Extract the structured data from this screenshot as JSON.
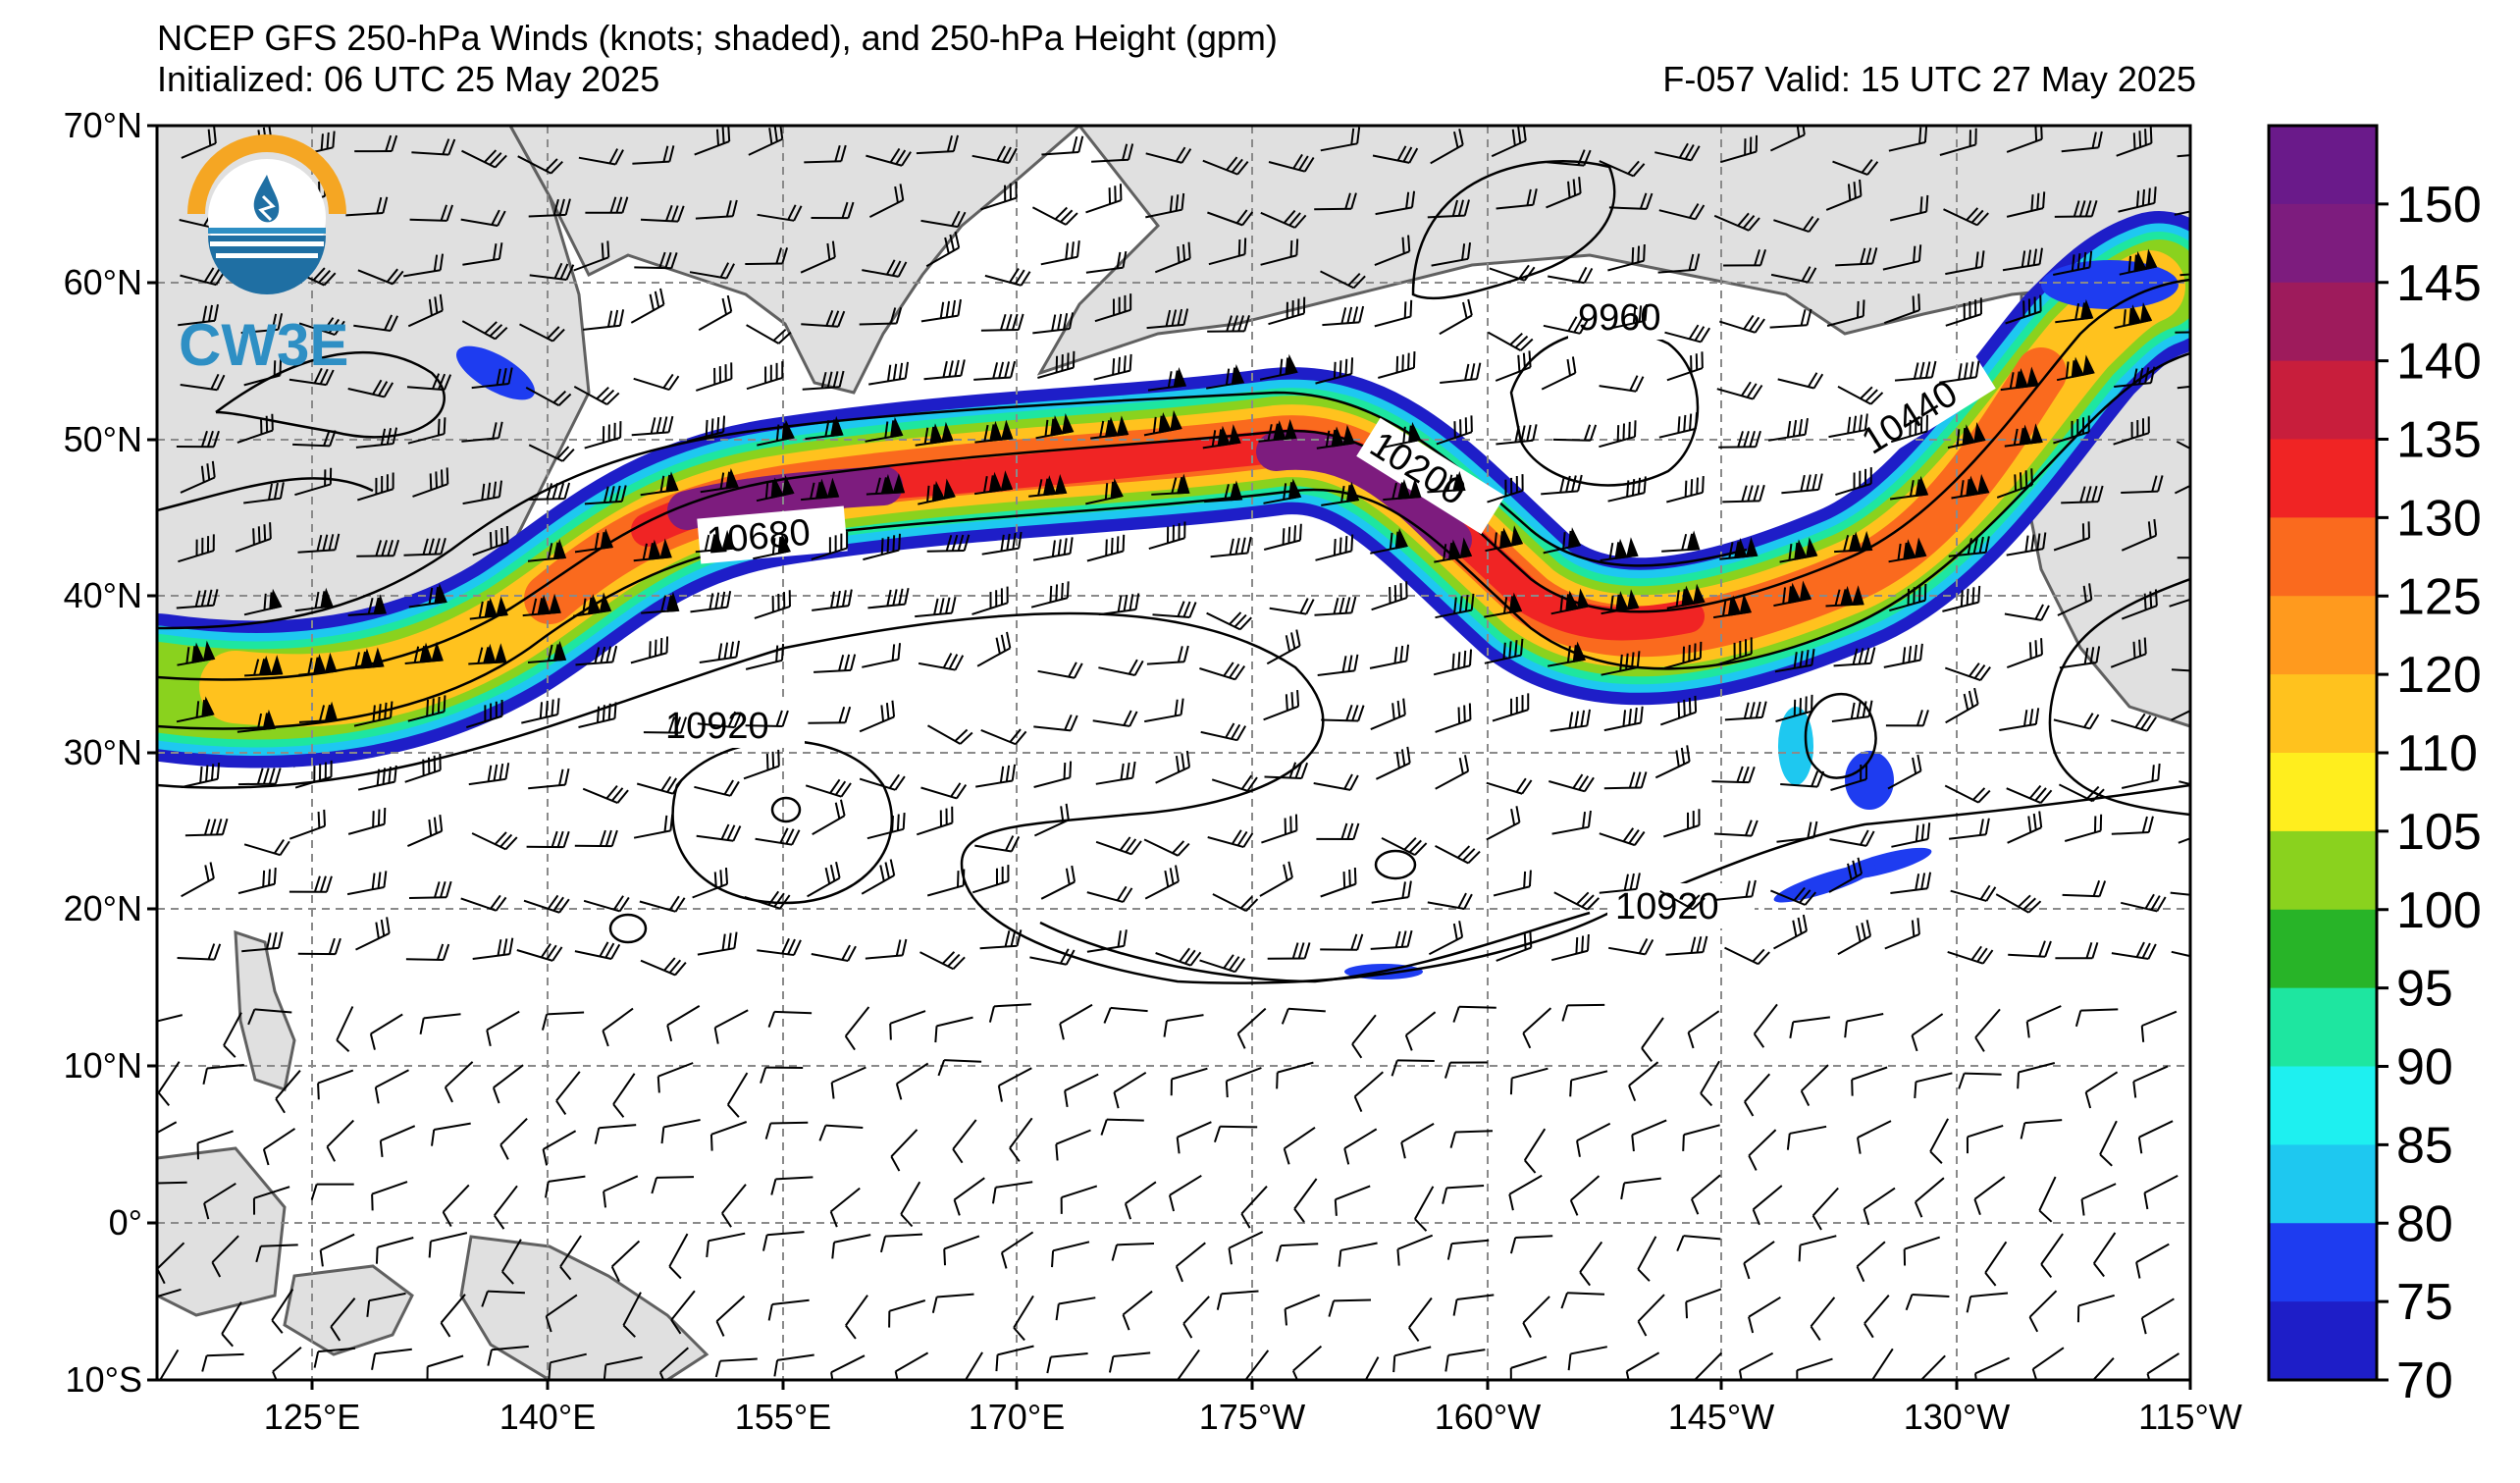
{
  "header": {
    "title_line1": "NCEP GFS 250-hPa Winds (knots; shaded), and 250-hPa Height (gpm)",
    "initialized": "Initialized: 06 UTC 25 May 2025",
    "valid": "F-057  Valid: 15 UTC 27 May 2025"
  },
  "logo": {
    "text": "CW3E",
    "icon": "cw3e-logo-icon"
  },
  "map": {
    "lon_labels": [
      "125°E",
      "140°E",
      "155°E",
      "170°E",
      "175°W",
      "160°W",
      "145°W",
      "130°W",
      "115°W"
    ],
    "lat_labels": [
      "70°N",
      "60°N",
      "50°N",
      "40°N",
      "30°N",
      "20°N",
      "10°N",
      "0°",
      "10°S"
    ],
    "contour_labels": [
      "10680",
      "10200",
      "9960",
      "10440",
      "10920",
      "10920"
    ],
    "land_color": "#e0e0e0",
    "grid": "dashed"
  },
  "colorbar": {
    "labels": [
      "150",
      "145",
      "140",
      "135",
      "130",
      "125",
      "120",
      "110",
      "105",
      "100",
      "95",
      "90",
      "85",
      "80",
      "75",
      "70"
    ],
    "colors": [
      "#6a1a8a",
      "#7d1c7e",
      "#9e1b5c",
      "#c81e3c",
      "#f02424",
      "#fa6a1e",
      "#ff9a1e",
      "#ffc21e",
      "#ffee1e",
      "#8ad21e",
      "#28b428",
      "#1ee6a0",
      "#1ef0f0",
      "#1ec8f0",
      "#1e3cf0",
      "#1e1ec8"
    ]
  }
}
